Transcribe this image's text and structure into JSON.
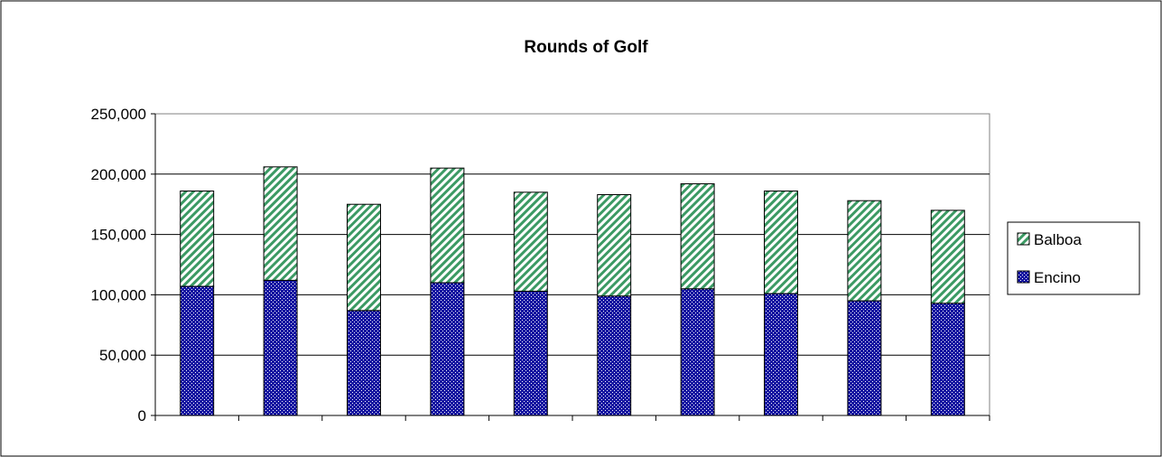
{
  "chart_data": {
    "type": "bar",
    "stacked": true,
    "title": "Rounds of Golf",
    "xlabel": "",
    "ylabel": "",
    "categories": [
      "",
      "",
      "",
      "",
      "",
      "",
      "",
      "",
      "",
      ""
    ],
    "series": [
      {
        "name": "Encino",
        "values": [
          107000,
          112000,
          87000,
          110000,
          103000,
          99000,
          105000,
          101000,
          95000,
          93000
        ],
        "color": "#1010a0",
        "pattern": "dotted"
      },
      {
        "name": "Balboa",
        "values": [
          79000,
          94000,
          88000,
          95000,
          82000,
          84000,
          87000,
          85000,
          83000,
          77000
        ],
        "color": "#3c9a64",
        "pattern": "diagonal-stripes"
      }
    ],
    "ylim": [
      0,
      250000
    ],
    "yticks": [
      0,
      50000,
      100000,
      150000,
      200000,
      250000
    ],
    "ytick_labels": [
      "0",
      "50,000",
      "100,000",
      "150,000",
      "200,000",
      "250,000"
    ],
    "grid": true,
    "legend_position": "right",
    "legend_order": [
      "Balboa",
      "Encino"
    ]
  }
}
